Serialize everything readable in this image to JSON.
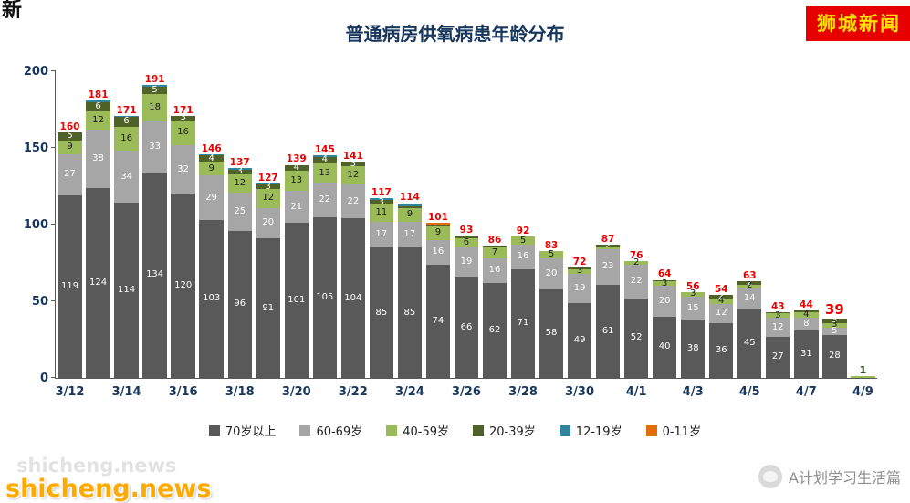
{
  "page": {
    "badge": "狮城新闻",
    "watermark": "shicheng.news",
    "brand": "A计划学习生活篇",
    "corner_fragment": "新"
  },
  "chart_data": {
    "type": "bar",
    "stacked": true,
    "title": "普通病房供氧病患年龄分布",
    "xlabel": "",
    "ylabel": "",
    "ylim": [
      0,
      200
    ],
    "yticks": [
      0,
      50,
      100,
      150,
      200
    ],
    "grid": false,
    "legend_position": "bottom",
    "series": [
      {
        "name": "70岁以上",
        "color": "#595959",
        "label_color": "#ffffff"
      },
      {
        "name": "60-69岁",
        "color": "#a6a6a6",
        "label_color": "#ffffff"
      },
      {
        "name": "40-59岁",
        "color": "#9bbb59",
        "label_color": "#1a1a1a"
      },
      {
        "name": "20-39岁",
        "color": "#4f6228",
        "label_color": "#ffffff"
      },
      {
        "name": "12-19岁",
        "color": "#31849b",
        "label_color": "#ffffff"
      },
      {
        "name": "0-11岁",
        "color": "#e36c0a",
        "label_color": "#1a1a1a"
      }
    ],
    "bars": [
      {
        "date": "3/12",
        "tick": "3/12",
        "total": 160,
        "total_style": "normal",
        "values": [
          119,
          27,
          9,
          5,
          0,
          0
        ]
      },
      {
        "date": "3/13",
        "tick": "",
        "total": 181,
        "total_style": "normal",
        "values": [
          124,
          38,
          12,
          6,
          1,
          0
        ]
      },
      {
        "date": "3/14",
        "tick": "3/14",
        "total": 171,
        "total_style": "normal",
        "values": [
          114,
          34,
          16,
          6,
          1,
          0
        ]
      },
      {
        "date": "3/15",
        "tick": "",
        "total": 191,
        "total_style": "normal",
        "values": [
          134,
          33,
          18,
          5,
          1,
          0
        ]
      },
      {
        "date": "3/16",
        "tick": "3/16",
        "total": 171,
        "total_style": "normal",
        "values": [
          120,
          32,
          16,
          3,
          0,
          0
        ]
      },
      {
        "date": "3/17",
        "tick": "",
        "total": 146,
        "total_style": "normal",
        "values": [
          103,
          29,
          9,
          4,
          1,
          0
        ]
      },
      {
        "date": "3/18",
        "tick": "3/18",
        "total": 137,
        "total_style": "normal",
        "values": [
          96,
          25,
          12,
          3,
          1,
          0
        ]
      },
      {
        "date": "3/19",
        "tick": "",
        "total": 127,
        "total_style": "normal",
        "values": [
          91,
          20,
          12,
          3,
          1,
          0
        ]
      },
      {
        "date": "3/20",
        "tick": "3/20",
        "total": 139,
        "total_style": "normal",
        "values": [
          101,
          21,
          13,
          4,
          0,
          0
        ]
      },
      {
        "date": "3/21",
        "tick": "",
        "total": 145,
        "total_style": "normal",
        "values": [
          105,
          22,
          13,
          4,
          1,
          0
        ]
      },
      {
        "date": "3/22",
        "tick": "3/22",
        "total": 141,
        "total_style": "normal",
        "values": [
          104,
          22,
          12,
          3,
          0,
          0
        ]
      },
      {
        "date": "3/23",
        "tick": "",
        "total": 117,
        "total_style": "normal",
        "values": [
          85,
          17,
          11,
          3,
          1,
          0
        ]
      },
      {
        "date": "3/24",
        "tick": "3/24",
        "total": 114,
        "total_style": "normal",
        "values": [
          85,
          17,
          9,
          1,
          1,
          1
        ]
      },
      {
        "date": "3/25",
        "tick": "",
        "total": 101,
        "total_style": "normal",
        "values": [
          74,
          16,
          9,
          1,
          0,
          1
        ]
      },
      {
        "date": "3/26",
        "tick": "3/26",
        "total": 93,
        "total_style": "normal",
        "values": [
          66,
          19,
          6,
          1,
          0,
          1
        ]
      },
      {
        "date": "3/27",
        "tick": "",
        "total": 86,
        "total_style": "normal",
        "values": [
          62,
          16,
          7,
          1,
          0,
          0
        ]
      },
      {
        "date": "3/28",
        "tick": "3/28",
        "total": 92,
        "total_style": "normal",
        "values": [
          71,
          16,
          5,
          0,
          0,
          0
        ]
      },
      {
        "date": "3/29",
        "tick": "",
        "total": 83,
        "total_style": "normal",
        "values": [
          58,
          20,
          5,
          0,
          0,
          0
        ]
      },
      {
        "date": "3/30",
        "tick": "3/30",
        "total": 72,
        "total_style": "normal",
        "values": [
          49,
          19,
          3,
          1,
          0,
          0
        ]
      },
      {
        "date": "3/31",
        "tick": "",
        "total": 87,
        "total_style": "normal",
        "values": [
          61,
          23,
          1,
          2,
          0,
          0
        ]
      },
      {
        "date": "4/1",
        "tick": "4/1",
        "total": 76,
        "total_style": "normal",
        "values": [
          52,
          22,
          2,
          0,
          0,
          0
        ]
      },
      {
        "date": "4/2",
        "tick": "",
        "total": 64,
        "total_style": "normal",
        "values": [
          40,
          20,
          3,
          1,
          0,
          0
        ]
      },
      {
        "date": "4/3",
        "tick": "4/3",
        "total": 56,
        "total_style": "normal",
        "values": [
          38,
          15,
          3,
          0,
          0,
          0
        ]
      },
      {
        "date": "4/4",
        "tick": "",
        "total": 54,
        "total_style": "normal",
        "values": [
          36,
          12,
          4,
          2,
          0,
          0
        ]
      },
      {
        "date": "4/5",
        "tick": "4/5",
        "total": 63,
        "total_style": "normal",
        "values": [
          45,
          14,
          2,
          2,
          0,
          0
        ]
      },
      {
        "date": "4/6",
        "tick": "",
        "total": 43,
        "total_style": "normal",
        "values": [
          27,
          12,
          3,
          1,
          0,
          0
        ]
      },
      {
        "date": "4/7",
        "tick": "4/7",
        "total": 44,
        "total_style": "normal",
        "values": [
          31,
          8,
          4,
          1,
          0,
          0
        ]
      },
      {
        "date": "4/8",
        "tick": "",
        "total": 39,
        "total_style": "bold",
        "values": [
          28,
          5,
          3,
          3,
          0,
          0
        ]
      },
      {
        "date": "4/9",
        "tick": "4/9",
        "total": 1,
        "total_style": "plain",
        "values": [
          0,
          0,
          1,
          0,
          0,
          0
        ]
      }
    ]
  }
}
